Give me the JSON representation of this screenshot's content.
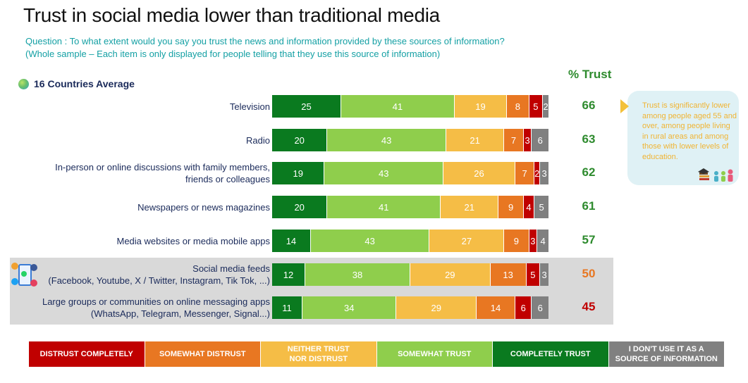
{
  "header": {
    "title": "Trust in social media lower than traditional media",
    "question_line1": "Question : To what extent would you say you trust the news and information provided by these sources of information?",
    "question_line2": "(Whole sample – Each item is only displayed for people telling that they use this source of information)",
    "average_label": "16 Countries Average",
    "trust_header": "% Trust"
  },
  "colors": {
    "distrust_completely": "#c00000",
    "somewhat_distrust": "#e87722",
    "neither": "#f5bd46",
    "somewhat_trust": "#8fce4c",
    "completely_trust": "#0a7a1f",
    "dont_use": "#808080",
    "trust_high": "#2e8b2e",
    "trust_mid": "#e87722",
    "trust_low": "#c00000"
  },
  "chart_data": {
    "type": "bar",
    "orientation": "horizontal",
    "stacked": true,
    "categories": [
      [
        "Television"
      ],
      [
        "Radio"
      ],
      [
        "In-person or online discussions with family members,",
        "friends or colleagues"
      ],
      [
        "Newspapers or news magazines"
      ],
      [
        "Media websites or media mobile apps"
      ],
      [
        "Social media feeds",
        "(Facebook, Youtube, X / Twitter, Instagram, Tik Tok, ...)"
      ],
      [
        "Large groups or communities on online messaging apps",
        "(WhatsApp, Telegram, Messenger, Signal...)"
      ]
    ],
    "series": [
      {
        "name": "COMPLETELY TRUST",
        "key": "completely_trust",
        "values": [
          25,
          20,
          19,
          20,
          14,
          12,
          11
        ]
      },
      {
        "name": "SOMEWHAT TRUST",
        "key": "somewhat_trust",
        "values": [
          41,
          43,
          43,
          41,
          43,
          38,
          34
        ]
      },
      {
        "name": "NEITHER TRUST NOR DISTRUST",
        "key": "neither",
        "values": [
          19,
          21,
          26,
          21,
          27,
          29,
          29
        ]
      },
      {
        "name": "SOMEWHAT DISTRUST",
        "key": "somewhat_distrust",
        "values": [
          8,
          7,
          7,
          9,
          9,
          13,
          14
        ]
      },
      {
        "name": "DISTRUST COMPLETELY",
        "key": "distrust_completely",
        "values": [
          5,
          3,
          2,
          4,
          3,
          5,
          6
        ]
      },
      {
        "name": "I DON'T USE IT AS A SOURCE OF INFORMATION",
        "key": "dont_use",
        "values": [
          2,
          6,
          3,
          5,
          4,
          3,
          6
        ]
      }
    ],
    "trust_percent": [
      66,
      63,
      62,
      61,
      57,
      50,
      45
    ],
    "trust_color": [
      "trust_high",
      "trust_high",
      "trust_high",
      "trust_high",
      "trust_high",
      "trust_mid",
      "trust_low"
    ],
    "highlighted_rows": [
      5,
      6
    ],
    "xlim": [
      0,
      100
    ]
  },
  "note": {
    "text": "Trust is significantly lower among people aged 55 and over, among people living in rural areas and among those with lower levels of education."
  },
  "legend": [
    {
      "lines": [
        "DISTRUST COMPLETELY"
      ],
      "color_key": "distrust_completely"
    },
    {
      "lines": [
        "SOMEWHAT DISTRUST"
      ],
      "color_key": "somewhat_distrust"
    },
    {
      "lines": [
        "NEITHER TRUST",
        "NOR DISTRUST"
      ],
      "color_key": "neither"
    },
    {
      "lines": [
        "SOMEWHAT TRUST"
      ],
      "color_key": "somewhat_trust"
    },
    {
      "lines": [
        "COMPLETELY TRUST"
      ],
      "color_key": "completely_trust"
    },
    {
      "lines": [
        "I DON'T USE IT AS A",
        "SOURCE OF INFORMATION"
      ],
      "color_key": "dont_use"
    }
  ],
  "icons": {
    "average": "globe-icon",
    "social": "social-media-icon",
    "note_pointer": "chevron-right-icon",
    "note_people": "people-icon"
  }
}
